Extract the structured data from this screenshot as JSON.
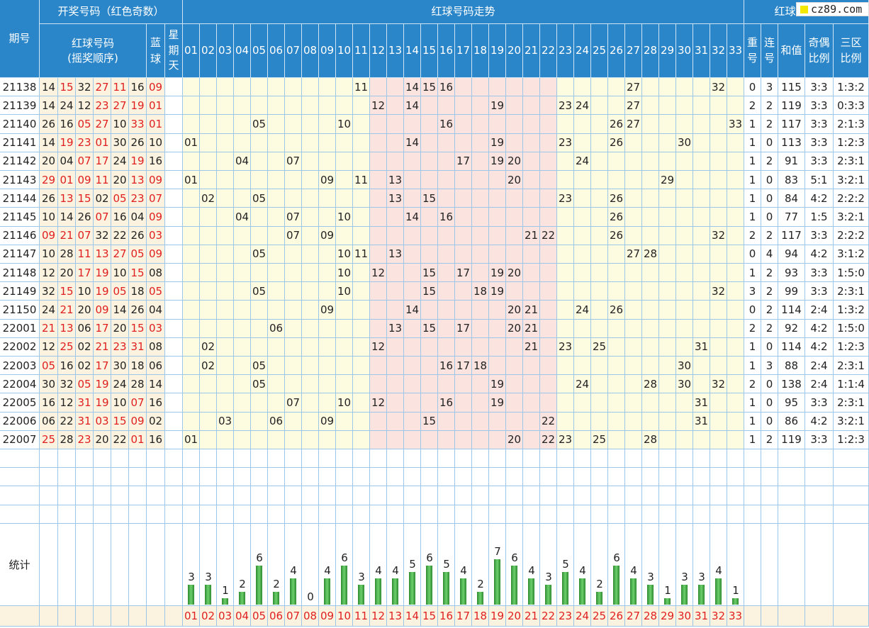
{
  "headers": {
    "period": "期号",
    "draw_group": "开奖号码（红色奇数）",
    "red_seq_line1": "红球号码",
    "red_seq_line2": "(摇奖顺序)",
    "blue": "蓝球",
    "weekday": "星期天",
    "trend_group": "红球号码走势",
    "analysis_group": "红球号码分析",
    "repeat": "重号",
    "consec": "连号",
    "sum": "和值",
    "odd_even": "奇偶比例",
    "zone": "三区比例",
    "stats": "统计"
  },
  "numbers": [
    "01",
    "02",
    "03",
    "04",
    "05",
    "06",
    "07",
    "08",
    "09",
    "10",
    "11",
    "12",
    "13",
    "14",
    "15",
    "16",
    "17",
    "18",
    "19",
    "20",
    "21",
    "22",
    "23",
    "24",
    "25",
    "26",
    "27",
    "28",
    "29",
    "30",
    "31",
    "32",
    "33"
  ],
  "rows": [
    {
      "period": "21138",
      "reds": [
        "14",
        "15",
        "32",
        "27",
        "11",
        "16"
      ],
      "blue": "09",
      "trend": [
        "11",
        "14",
        "15",
        "16",
        "27",
        "32"
      ],
      "repeat": "0",
      "consec": "3",
      "sum": "115",
      "oe": "3:3",
      "zone": "1:3:2"
    },
    {
      "period": "21139",
      "reds": [
        "14",
        "24",
        "12",
        "23",
        "27",
        "19"
      ],
      "blue": "01",
      "trend": [
        "12",
        "14",
        "19",
        "23",
        "24",
        "27"
      ],
      "repeat": "2",
      "consec": "2",
      "sum": "119",
      "oe": "3:3",
      "zone": "0:3:3"
    },
    {
      "period": "21140",
      "reds": [
        "26",
        "16",
        "05",
        "27",
        "10",
        "33"
      ],
      "blue": "01",
      "trend": [
        "05",
        "10",
        "16",
        "26",
        "27",
        "33"
      ],
      "repeat": "1",
      "consec": "2",
      "sum": "117",
      "oe": "3:3",
      "zone": "2:1:3"
    },
    {
      "period": "21141",
      "reds": [
        "14",
        "19",
        "23",
        "01",
        "30",
        "26"
      ],
      "blue": "10",
      "trend": [
        "01",
        "14",
        "19",
        "23",
        "26",
        "30"
      ],
      "repeat": "1",
      "consec": "0",
      "sum": "113",
      "oe": "3:3",
      "zone": "1:2:3"
    },
    {
      "period": "21142",
      "reds": [
        "20",
        "04",
        "07",
        "17",
        "24",
        "19"
      ],
      "blue": "16",
      "trend": [
        "04",
        "07",
        "17",
        "19",
        "20",
        "24"
      ],
      "repeat": "1",
      "consec": "2",
      "sum": "91",
      "oe": "3:3",
      "zone": "2:3:1"
    },
    {
      "period": "21143",
      "reds": [
        "29",
        "01",
        "09",
        "11",
        "20",
        "13"
      ],
      "blue": "09",
      "trend": [
        "01",
        "09",
        "11",
        "13",
        "20",
        "29"
      ],
      "repeat": "1",
      "consec": "0",
      "sum": "83",
      "oe": "5:1",
      "zone": "3:2:1"
    },
    {
      "period": "21144",
      "reds": [
        "26",
        "13",
        "15",
        "02",
        "05",
        "23"
      ],
      "blue": "07",
      "trend": [
        "02",
        "05",
        "13",
        "15",
        "23",
        "26"
      ],
      "repeat": "1",
      "consec": "0",
      "sum": "84",
      "oe": "4:2",
      "zone": "2:2:2"
    },
    {
      "period": "21145",
      "reds": [
        "10",
        "14",
        "26",
        "07",
        "16",
        "04"
      ],
      "blue": "09",
      "trend": [
        "04",
        "07",
        "10",
        "14",
        "16",
        "26"
      ],
      "repeat": "1",
      "consec": "0",
      "sum": "77",
      "oe": "1:5",
      "zone": "3:2:1"
    },
    {
      "period": "21146",
      "reds": [
        "09",
        "21",
        "07",
        "32",
        "22",
        "26"
      ],
      "blue": "03",
      "trend": [
        "07",
        "09",
        "21",
        "22",
        "26",
        "32"
      ],
      "repeat": "2",
      "consec": "2",
      "sum": "117",
      "oe": "3:3",
      "zone": "2:2:2"
    },
    {
      "period": "21147",
      "reds": [
        "10",
        "28",
        "11",
        "13",
        "27",
        "05"
      ],
      "blue": "09",
      "trend": [
        "05",
        "10",
        "11",
        "13",
        "27",
        "28"
      ],
      "repeat": "0",
      "consec": "4",
      "sum": "94",
      "oe": "4:2",
      "zone": "3:1:2"
    },
    {
      "period": "21148",
      "reds": [
        "12",
        "20",
        "17",
        "19",
        "10",
        "15"
      ],
      "blue": "08",
      "trend": [
        "10",
        "12",
        "15",
        "17",
        "19",
        "20"
      ],
      "repeat": "1",
      "consec": "2",
      "sum": "93",
      "oe": "3:3",
      "zone": "1:5:0"
    },
    {
      "period": "21149",
      "reds": [
        "32",
        "15",
        "10",
        "19",
        "05",
        "18"
      ],
      "blue": "05",
      "trend": [
        "05",
        "10",
        "15",
        "18",
        "19",
        "32"
      ],
      "repeat": "3",
      "consec": "2",
      "sum": "99",
      "oe": "3:3",
      "zone": "2:3:1"
    },
    {
      "period": "21150",
      "reds": [
        "24",
        "21",
        "20",
        "09",
        "14",
        "26"
      ],
      "blue": "04",
      "trend": [
        "09",
        "14",
        "20",
        "21",
        "24",
        "26"
      ],
      "repeat": "0",
      "consec": "2",
      "sum": "114",
      "oe": "2:4",
      "zone": "1:3:2"
    },
    {
      "period": "22001",
      "reds": [
        "21",
        "13",
        "06",
        "17",
        "20",
        "15"
      ],
      "blue": "03",
      "trend": [
        "06",
        "13",
        "15",
        "17",
        "20",
        "21"
      ],
      "repeat": "2",
      "consec": "2",
      "sum": "92",
      "oe": "4:2",
      "zone": "1:5:0"
    },
    {
      "period": "22002",
      "reds": [
        "12",
        "25",
        "02",
        "21",
        "23",
        "31"
      ],
      "blue": "08",
      "trend": [
        "02",
        "12",
        "21",
        "23",
        "25",
        "31"
      ],
      "repeat": "1",
      "consec": "0",
      "sum": "114",
      "oe": "4:2",
      "zone": "1:2:3"
    },
    {
      "period": "22003",
      "reds": [
        "05",
        "16",
        "02",
        "17",
        "30",
        "18"
      ],
      "blue": "06",
      "trend": [
        "02",
        "05",
        "16",
        "17",
        "18",
        "30"
      ],
      "repeat": "1",
      "consec": "3",
      "sum": "88",
      "oe": "2:4",
      "zone": "2:3:1"
    },
    {
      "period": "22004",
      "reds": [
        "30",
        "32",
        "05",
        "19",
        "24",
        "28"
      ],
      "blue": "14",
      "trend": [
        "05",
        "19",
        "24",
        "28",
        "30",
        "32"
      ],
      "repeat": "2",
      "consec": "0",
      "sum": "138",
      "oe": "2:4",
      "zone": "1:1:4"
    },
    {
      "period": "22005",
      "reds": [
        "16",
        "12",
        "31",
        "19",
        "10",
        "07"
      ],
      "blue": "16",
      "trend": [
        "07",
        "10",
        "12",
        "16",
        "19",
        "31"
      ],
      "repeat": "1",
      "consec": "0",
      "sum": "95",
      "oe": "3:3",
      "zone": "2:3:1"
    },
    {
      "period": "22006",
      "reds": [
        "06",
        "22",
        "31",
        "03",
        "15",
        "09"
      ],
      "blue": "02",
      "trend": [
        "03",
        "06",
        "09",
        "15",
        "22",
        "31"
      ],
      "repeat": "1",
      "consec": "0",
      "sum": "86",
      "oe": "4:2",
      "zone": "3:2:1"
    },
    {
      "period": "22007",
      "reds": [
        "25",
        "28",
        "23",
        "20",
        "22",
        "01"
      ],
      "blue": "16",
      "trend": [
        "01",
        "20",
        "22",
        "23",
        "25",
        "28"
      ],
      "repeat": "1",
      "consec": "2",
      "sum": "119",
      "oe": "3:3",
      "zone": "1:2:3"
    }
  ],
  "stats": [
    3,
    3,
    1,
    2,
    6,
    2,
    4,
    0,
    4,
    6,
    3,
    4,
    4,
    5,
    6,
    5,
    4,
    2,
    7,
    6,
    4,
    3,
    5,
    4,
    2,
    6,
    4,
    3,
    1,
    3,
    3,
    4,
    1
  ],
  "stats_max": 7,
  "logo": "cz89.com",
  "colors": {
    "header": "#2a86c8",
    "odd": "#e02020",
    "zone_yellow": "#fdfbe0",
    "zone_pink": "#fbe3df",
    "bar": "#3aa53a"
  }
}
